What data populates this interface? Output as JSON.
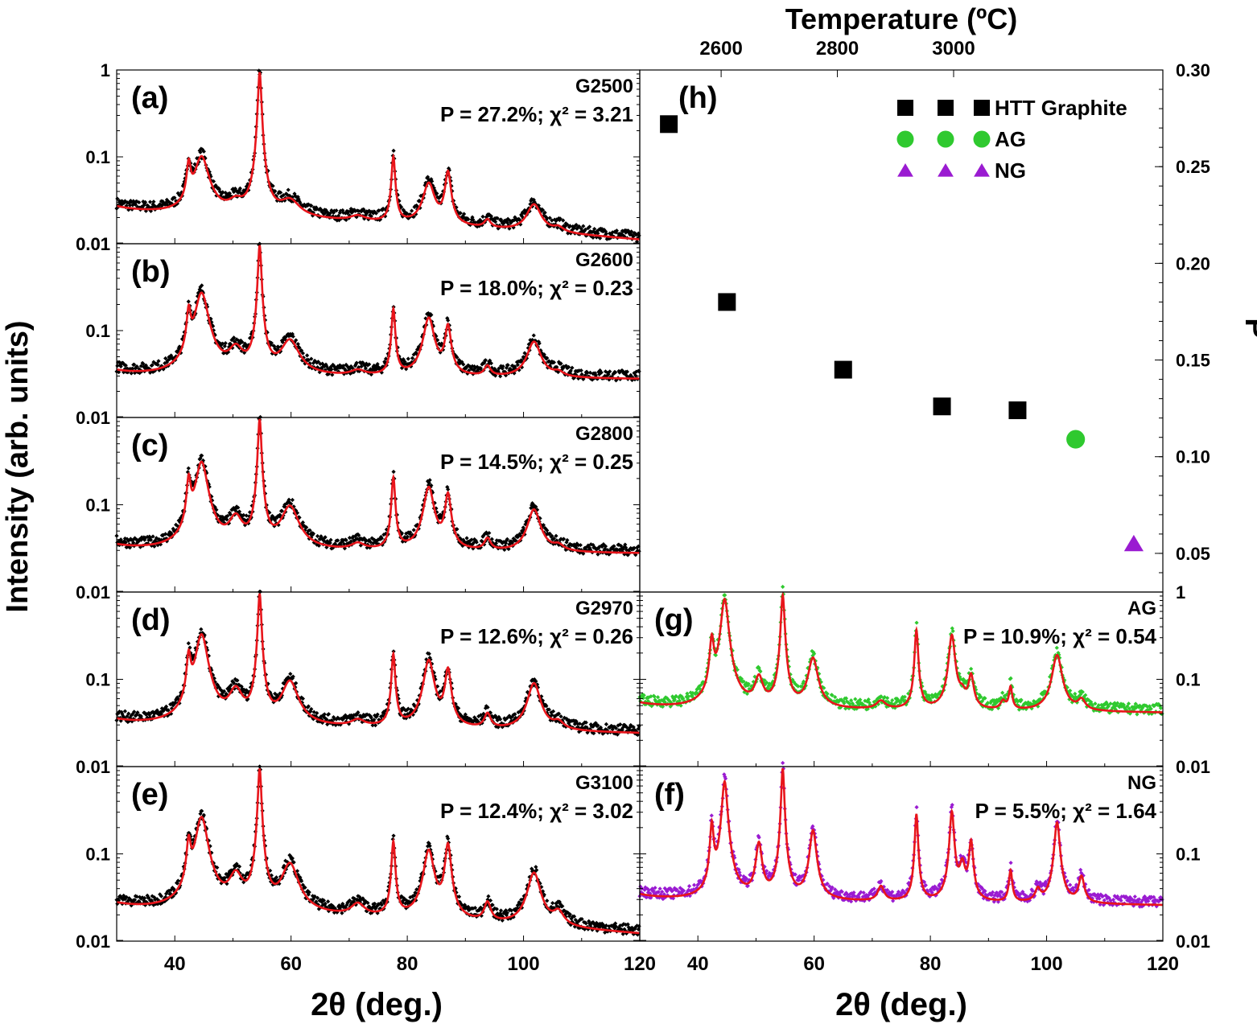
{
  "figure": {
    "ylabel_left": "Intensity (arb. units)",
    "xlabel": "2θ (deg.)",
    "top_axis_label": "Temperature (ºC)",
    "right_axis_label": "P",
    "fit_color": "#e8151b",
    "colors": {
      "htt": "#000000",
      "ag": "#2fc92f",
      "ng": "#9a1bd1"
    }
  },
  "chart_data": [
    {
      "id": "a",
      "type": "scatter",
      "panel_label": "(a)",
      "sample": "G2500",
      "annotation": "P = 27.2%; χ² = 3.21",
      "xlim": [
        30,
        120
      ],
      "ylim": [
        0.01,
        1
      ],
      "yscale": "log",
      "ytick_labels": [
        "0.01",
        "0.1",
        "1"
      ],
      "baseline": 0.025,
      "base_end": 0.012,
      "bump_scale": 1.0,
      "peaks": [
        [
          42.4,
          0.06,
          0.35
        ],
        [
          44.6,
          0.085,
          1.2
        ],
        [
          50.5,
          0.008,
          1.4
        ],
        [
          54.6,
          1.0,
          0.28
        ],
        [
          59.8,
          0.012,
          1.8
        ],
        [
          71.5,
          0.003,
          1.5
        ],
        [
          77.6,
          0.09,
          0.3
        ],
        [
          83.7,
          0.036,
          1.0
        ],
        [
          87.0,
          0.055,
          0.5
        ],
        [
          93.8,
          0.004,
          0.6
        ],
        [
          101.8,
          0.016,
          1.3
        ],
        [
          106.0,
          0.002,
          1.0
        ]
      ],
      "series_color": "#000000"
    },
    {
      "id": "b",
      "type": "scatter",
      "panel_label": "(b)",
      "sample": "G2600",
      "annotation": "P = 18.0%; χ² = 0.23",
      "xlim": [
        30,
        120
      ],
      "ylim": [
        0.01,
        1
      ],
      "yscale": "log",
      "ytick_labels": [
        "0.01",
        "0.1"
      ],
      "baseline": 0.032,
      "base_end": 0.03,
      "bump_scale": 1.0,
      "peaks": [
        [
          42.4,
          0.13,
          0.35
        ],
        [
          44.6,
          0.26,
          1.1
        ],
        [
          50.5,
          0.03,
          1.3
        ],
        [
          54.6,
          1.0,
          0.28
        ],
        [
          59.8,
          0.05,
          1.6
        ],
        [
          71.5,
          0.005,
          1.4
        ],
        [
          77.6,
          0.16,
          0.3
        ],
        [
          83.7,
          0.12,
          0.9
        ],
        [
          87.0,
          0.09,
          0.5
        ],
        [
          93.8,
          0.01,
          0.6
        ],
        [
          101.8,
          0.05,
          1.2
        ],
        [
          106.0,
          0.004,
          1.0
        ]
      ],
      "series_color": "#000000"
    },
    {
      "id": "c",
      "type": "scatter",
      "panel_label": "(c)",
      "sample": "G2800",
      "annotation": "P = 14.5%; χ² = 0.25",
      "xlim": [
        30,
        120
      ],
      "ylim": [
        0.01,
        1
      ],
      "yscale": "log",
      "ytick_labels": [
        "0.01",
        "0.1"
      ],
      "baseline": 0.032,
      "base_end": 0.03,
      "bump_scale": 1.0,
      "peaks": [
        [
          42.4,
          0.16,
          0.35
        ],
        [
          44.6,
          0.3,
          1.0
        ],
        [
          50.5,
          0.04,
          1.2
        ],
        [
          54.6,
          1.0,
          0.28
        ],
        [
          59.8,
          0.07,
          1.5
        ],
        [
          71.5,
          0.006,
          1.3
        ],
        [
          77.6,
          0.19,
          0.3
        ],
        [
          83.7,
          0.14,
          0.85
        ],
        [
          87.0,
          0.11,
          0.5
        ],
        [
          93.8,
          0.012,
          0.6
        ],
        [
          101.8,
          0.065,
          1.1
        ],
        [
          106.0,
          0.005,
          1.0
        ]
      ],
      "series_color": "#000000"
    },
    {
      "id": "d",
      "type": "scatter",
      "panel_label": "(d)",
      "sample": "G2970",
      "annotation": "P = 12.6%; χ² = 0.26",
      "xlim": [
        30,
        120
      ],
      "ylim": [
        0.01,
        1
      ],
      "yscale": "log",
      "ytick_labels": [
        "0.01",
        "0.1"
      ],
      "baseline": 0.032,
      "base_end": 0.026,
      "bump_scale": 1.0,
      "peaks": [
        [
          42.4,
          0.15,
          0.35
        ],
        [
          44.6,
          0.32,
          1.0
        ],
        [
          50.5,
          0.045,
          1.2
        ],
        [
          54.6,
          1.0,
          0.28
        ],
        [
          59.8,
          0.07,
          1.4
        ],
        [
          71.5,
          0.006,
          1.3
        ],
        [
          77.6,
          0.18,
          0.3
        ],
        [
          83.7,
          0.15,
          0.85
        ],
        [
          87.0,
          0.11,
          0.5
        ],
        [
          93.8,
          0.014,
          0.6
        ],
        [
          101.8,
          0.07,
          1.1
        ],
        [
          106.0,
          0.006,
          1.0
        ]
      ],
      "series_color": "#000000"
    },
    {
      "id": "e",
      "type": "scatter",
      "panel_label": "(e)",
      "sample": "G3100",
      "annotation": "P = 12.4%; χ² = 3.02",
      "xlim": [
        30,
        120
      ],
      "ylim": [
        0.01,
        1
      ],
      "yscale": "log",
      "ytick_labels": [
        "0.01",
        "0.1",
        "0.01"
      ],
      "baseline": 0.025,
      "base_end": 0.013,
      "bump_scale": 1.0,
      "peaks": [
        [
          42.4,
          0.11,
          0.35
        ],
        [
          44.6,
          0.26,
          1.0
        ],
        [
          50.5,
          0.035,
          1.2
        ],
        [
          54.6,
          1.0,
          0.28
        ],
        [
          59.8,
          0.06,
          1.4
        ],
        [
          71.5,
          0.008,
          1.3
        ],
        [
          77.6,
          0.13,
          0.3
        ],
        [
          83.7,
          0.1,
          0.85
        ],
        [
          87.0,
          0.12,
          0.5
        ],
        [
          93.8,
          0.012,
          0.6
        ],
        [
          101.8,
          0.05,
          1.1
        ],
        [
          106.0,
          0.007,
          1.0
        ]
      ],
      "series_color": "#000000"
    },
    {
      "id": "h",
      "type": "scatter",
      "panel_label": "(h)",
      "x_axis": "2θ (deg.)",
      "xlim": [
        30,
        120
      ],
      "top_axis": {
        "label": "Temperature (ºC)",
        "ticks": [
          2600,
          2800,
          3000
        ],
        "tick_x": [
          44.0,
          64.0,
          84.0
        ]
      },
      "ylim": [
        0.03,
        0.3
      ],
      "yticks": [
        0.05,
        0.1,
        0.15,
        0.2,
        0.25,
        0.3
      ],
      "ytick_labels": [
        "0.05",
        "0.10",
        "0.15",
        "0.20",
        "0.25",
        "0.30"
      ],
      "ylabel": "P",
      "series": [
        {
          "name": "HTT Graphite",
          "marker": "square",
          "color": "#000000",
          "x": [
            35,
            45,
            65,
            82,
            95
          ],
          "y": [
            0.272,
            0.18,
            0.145,
            0.126,
            0.124
          ]
        },
        {
          "name": "AG",
          "marker": "circle",
          "color": "#2fc92f",
          "x": [
            105
          ],
          "y": [
            0.109
          ]
        },
        {
          "name": "NG",
          "marker": "triangle",
          "color": "#9a1bd1",
          "x": [
            115
          ],
          "y": [
            0.055
          ]
        }
      ],
      "legend_position": "top-right"
    },
    {
      "id": "g",
      "type": "scatter",
      "panel_label": "(g)",
      "sample": "AG",
      "annotation": "P = 10.9%; χ² = 0.54",
      "xlim": [
        30,
        120
      ],
      "ylim": [
        0.01,
        1
      ],
      "yscale": "log",
      "ytick_labels": [
        "0.1",
        "1"
      ],
      "baseline": 0.05,
      "base_end": 0.045,
      "bump_scale": 1.0,
      "peaks": [
        [
          42.4,
          0.25,
          0.35
        ],
        [
          44.6,
          0.85,
          0.6
        ],
        [
          50.5,
          0.06,
          0.7
        ],
        [
          54.6,
          0.95,
          0.3
        ],
        [
          59.8,
          0.14,
          0.8
        ],
        [
          71.5,
          0.012,
          0.9
        ],
        [
          77.6,
          0.35,
          0.28
        ],
        [
          83.7,
          0.3,
          0.5
        ],
        [
          85.5,
          0.02,
          0.6
        ],
        [
          87.0,
          0.07,
          0.45
        ],
        [
          92.5,
          0.012,
          0.5
        ],
        [
          93.8,
          0.04,
          0.3
        ],
        [
          101.8,
          0.16,
          0.8
        ],
        [
          106.0,
          0.015,
          0.7
        ]
      ],
      "series_color": "#2fc92f"
    },
    {
      "id": "f",
      "type": "scatter",
      "panel_label": "(f)",
      "sample": "NG",
      "annotation": "P = 5.5%; χ² = 1.64",
      "xlim": [
        30,
        120
      ],
      "ylim": [
        0.01,
        1
      ],
      "yscale": "log",
      "ytick_labels": [
        "0.01",
        "0.1",
        "0.01"
      ],
      "baseline": 0.032,
      "base_end": 0.028,
      "bump_scale": 1.0,
      "peaks": [
        [
          42.4,
          0.2,
          0.3
        ],
        [
          44.6,
          0.7,
          0.45
        ],
        [
          50.5,
          0.11,
          0.5
        ],
        [
          54.6,
          1.0,
          0.25
        ],
        [
          59.8,
          0.17,
          0.55
        ],
        [
          71.5,
          0.015,
          0.6
        ],
        [
          77.6,
          0.28,
          0.25
        ],
        [
          83.7,
          0.3,
          0.35
        ],
        [
          85.5,
          0.05,
          0.5
        ],
        [
          87.0,
          0.12,
          0.35
        ],
        [
          93.8,
          0.04,
          0.3
        ],
        [
          98.5,
          0.012,
          0.5
        ],
        [
          101.8,
          0.22,
          0.45
        ],
        [
          106.0,
          0.03,
          0.5
        ]
      ],
      "series_color": "#9a1bd1"
    }
  ],
  "x_tick_labels_left": [
    "40",
    "60",
    "80",
    "100",
    "120"
  ],
  "x_tick_labels_right": [
    "40",
    "60",
    "80",
    "100",
    "120"
  ]
}
